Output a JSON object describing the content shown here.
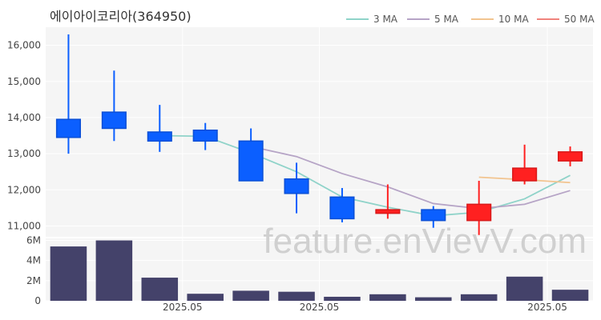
{
  "chart_data": {
    "type": "candlestick",
    "title": "에이아이코리아(364950)",
    "watermark": "feature.enVievV.com",
    "ylim": [
      10700,
      16500
    ],
    "yticks": [
      {
        "value": 11000,
        "label": "11,000"
      },
      {
        "value": 12000,
        "label": "12,000"
      },
      {
        "value": 13000,
        "label": "13,000"
      },
      {
        "value": 14000,
        "label": "14,000"
      },
      {
        "value": 15000,
        "label": "15,000"
      },
      {
        "value": 16000,
        "label": "16,000"
      }
    ],
    "volume_ylim": [
      0,
      6200000
    ],
    "volume_yticks": [
      {
        "value": 0,
        "label": "0"
      },
      {
        "value": 2000000,
        "label": "2M"
      },
      {
        "value": 4000000,
        "label": "4M"
      },
      {
        "value": 6000000,
        "label": "6M"
      }
    ],
    "x_tick_labels": [
      {
        "index": 3,
        "label": "2025.05"
      },
      {
        "index": 6,
        "label": "2025.05"
      },
      {
        "index": 11,
        "label": "2025.05"
      }
    ],
    "candles": [
      {
        "open": 13950,
        "high": 16300,
        "low": 13000,
        "close": 13450
      },
      {
        "open": 14150,
        "high": 15300,
        "low": 13350,
        "close": 13700
      },
      {
        "open": 13600,
        "high": 14350,
        "low": 13050,
        "close": 13350
      },
      {
        "open": 13650,
        "high": 13850,
        "low": 13100,
        "close": 13350
      },
      {
        "open": 13350,
        "high": 13700,
        "low": 12250,
        "close": 12250
      },
      {
        "open": 12300,
        "high": 12750,
        "low": 11350,
        "close": 11900
      },
      {
        "open": 11800,
        "high": 12050,
        "low": 11100,
        "close": 11200
      },
      {
        "open": 11350,
        "high": 12150,
        "low": 11200,
        "close": 11450
      },
      {
        "open": 11450,
        "high": 11550,
        "low": 10950,
        "close": 11150
      },
      {
        "open": 11150,
        "high": 12250,
        "low": 10750,
        "close": 11600
      },
      {
        "open": 12250,
        "high": 13250,
        "low": 12150,
        "close": 12600
      },
      {
        "open": 12800,
        "high": 13200,
        "low": 12650,
        "close": 13050
      }
    ],
    "volumes": [
      5400000,
      6000000,
      2300000,
      700000,
      1000000,
      900000,
      400000,
      650000,
      350000,
      650000,
      2400000,
      1100000
    ],
    "moving_averages": [
      {
        "name": "3 MA",
        "color": "#8fd3c9",
        "values": [
          null,
          null,
          13500,
          13480,
          13020,
          12500,
          11800,
          11520,
          11280,
          11380,
          11750,
          12400
        ]
      },
      {
        "name": "5 MA",
        "color": "#b6a4c6",
        "values": [
          null,
          null,
          null,
          null,
          13200,
          12920,
          12450,
          12080,
          11620,
          11480,
          11600,
          11980
        ]
      },
      {
        "name": "10 MA",
        "color": "#f2c48f",
        "values": [
          null,
          null,
          null,
          null,
          null,
          null,
          null,
          null,
          null,
          12350,
          12280,
          12200
        ]
      },
      {
        "name": "50 MA",
        "color": "#f0837c",
        "values": []
      }
    ],
    "colors": {
      "up": "#ff2020",
      "down": "#0b5fff",
      "volume": "#44426a",
      "background": "#f5f5f5",
      "grid": "#ffffff"
    }
  }
}
